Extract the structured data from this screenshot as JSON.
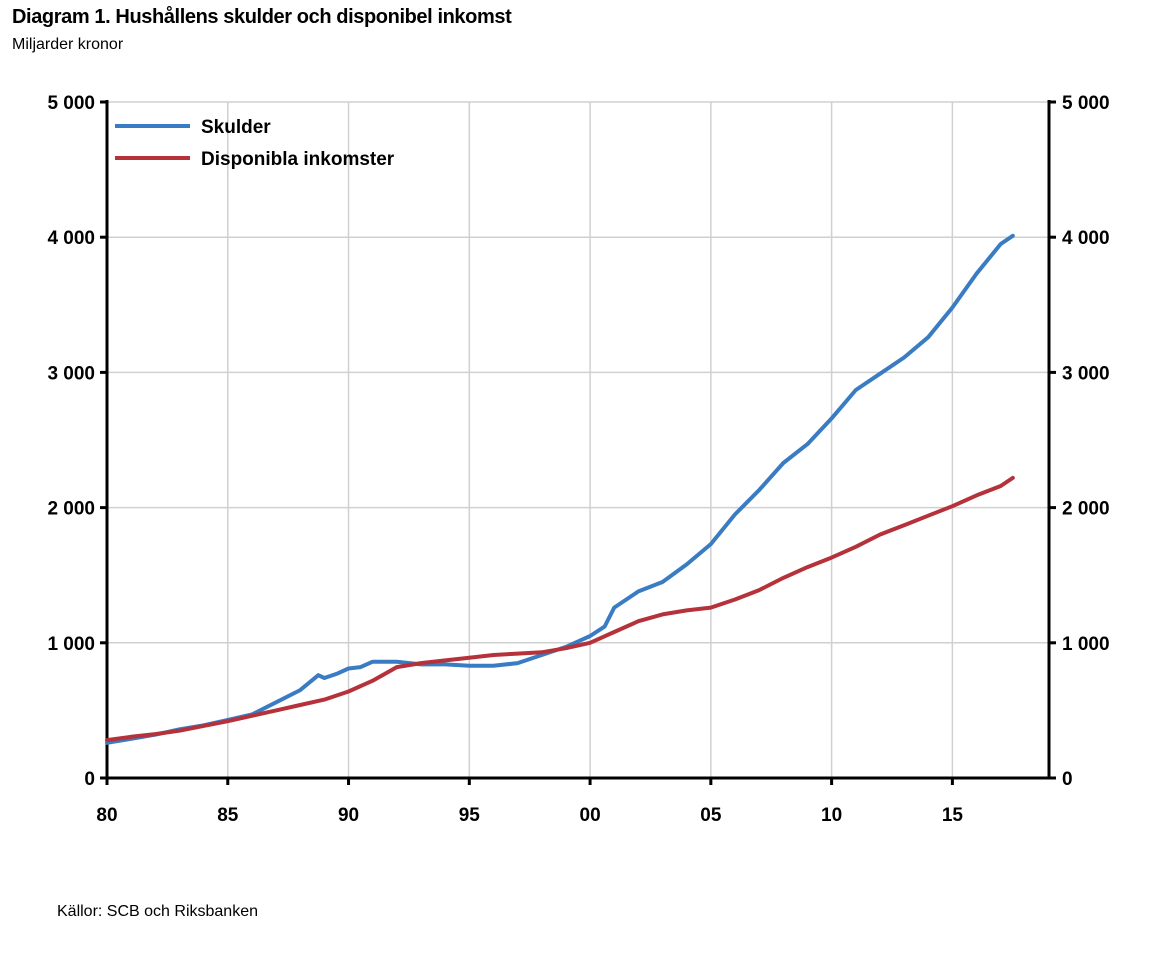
{
  "header": {
    "title": "Diagram 1. Hushållens skulder och disponibel inkomst",
    "subtitle": "Miljarder kronor"
  },
  "footer": {
    "source": "Källor: SCB och Riksbanken"
  },
  "colors": {
    "skulder": "#3a7cc4",
    "inkomster": "#b5323a",
    "grid": "#d0d0d0",
    "axis": "#000000"
  },
  "chart_data": {
    "type": "line",
    "title": "Diagram 1. Hushållens skulder och disponibel inkomst",
    "subtitle": "Miljarder kronor",
    "xlabel": "",
    "ylabel": "",
    "xlim": [
      1980,
      2019
    ],
    "ylim": [
      0,
      5000
    ],
    "x_ticks": [
      1980,
      1985,
      1990,
      1995,
      2000,
      2005,
      2010,
      2015
    ],
    "x_tick_labels": [
      "80",
      "85",
      "90",
      "95",
      "00",
      "05",
      "10",
      "15"
    ],
    "y_ticks": [
      0,
      1000,
      2000,
      3000,
      4000,
      5000
    ],
    "y_tick_labels": [
      "0",
      "1 000",
      "2 000",
      "3 000",
      "4 000",
      "5 000"
    ],
    "y_axis_right": true,
    "grid": "vertical",
    "legend_position": "top-left",
    "series": [
      {
        "name": "Skulder",
        "color": "#3a7cc4",
        "points": [
          [
            1980,
            260
          ],
          [
            1981,
            290
          ],
          [
            1982,
            320
          ],
          [
            1983,
            360
          ],
          [
            1984,
            390
          ],
          [
            1985,
            430
          ],
          [
            1986,
            470
          ],
          [
            1987,
            560
          ],
          [
            1988,
            650
          ],
          [
            1988.75,
            760
          ],
          [
            1989,
            740
          ],
          [
            1989.5,
            770
          ],
          [
            1990,
            810
          ],
          [
            1990.5,
            820
          ],
          [
            1991,
            860
          ],
          [
            1992,
            860
          ],
          [
            1993,
            840
          ],
          [
            1994,
            840
          ],
          [
            1995,
            830
          ],
          [
            1996,
            830
          ],
          [
            1997,
            850
          ],
          [
            1998,
            910
          ],
          [
            1999,
            970
          ],
          [
            2000,
            1050
          ],
          [
            2000.6,
            1120
          ],
          [
            2001,
            1260
          ],
          [
            2002,
            1380
          ],
          [
            2003,
            1450
          ],
          [
            2004,
            1580
          ],
          [
            2005,
            1730
          ],
          [
            2006,
            1950
          ],
          [
            2007,
            2130
          ],
          [
            2008,
            2330
          ],
          [
            2009,
            2470
          ],
          [
            2010,
            2660
          ],
          [
            2011,
            2870
          ],
          [
            2012,
            2990
          ],
          [
            2013,
            3110
          ],
          [
            2014,
            3260
          ],
          [
            2015,
            3480
          ],
          [
            2016,
            3730
          ],
          [
            2017,
            3950
          ],
          [
            2017.5,
            4010
          ]
        ]
      },
      {
        "name": "Disponibla inkomster",
        "color": "#b5323a",
        "points": [
          [
            1980,
            280
          ],
          [
            1981,
            305
          ],
          [
            1982,
            325
          ],
          [
            1983,
            350
          ],
          [
            1984,
            385
          ],
          [
            1985,
            420
          ],
          [
            1986,
            460
          ],
          [
            1987,
            500
          ],
          [
            1988,
            540
          ],
          [
            1989,
            580
          ],
          [
            1990,
            640
          ],
          [
            1991,
            720
          ],
          [
            1992,
            820
          ],
          [
            1993,
            850
          ],
          [
            1994,
            870
          ],
          [
            1995,
            890
          ],
          [
            1996,
            910
          ],
          [
            1997,
            920
          ],
          [
            1998,
            930
          ],
          [
            1999,
            960
          ],
          [
            2000,
            1000
          ],
          [
            2001,
            1080
          ],
          [
            2002,
            1160
          ],
          [
            2003,
            1210
          ],
          [
            2004,
            1240
          ],
          [
            2005,
            1260
          ],
          [
            2006,
            1320
          ],
          [
            2007,
            1390
          ],
          [
            2008,
            1480
          ],
          [
            2009,
            1560
          ],
          [
            2010,
            1630
          ],
          [
            2011,
            1710
          ],
          [
            2012,
            1800
          ],
          [
            2013,
            1870
          ],
          [
            2014,
            1940
          ],
          [
            2015,
            2010
          ],
          [
            2016,
            2090
          ],
          [
            2017,
            2160
          ],
          [
            2017.5,
            2220
          ]
        ]
      }
    ]
  }
}
